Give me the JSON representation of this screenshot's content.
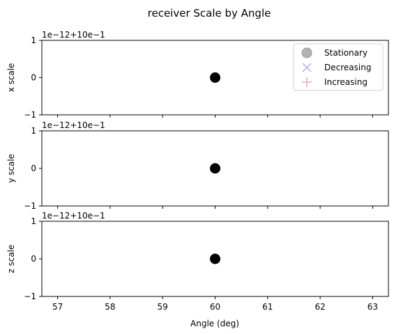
{
  "chart_data": {
    "type": "scatter",
    "title": "receiver Scale by Angle",
    "xlabel": "Angle (deg)",
    "xlim": [
      56.7,
      63.3
    ],
    "xticks": [
      "57",
      "58",
      "59",
      "60",
      "61",
      "62",
      "63"
    ],
    "ylim": [
      -1,
      1
    ],
    "yticks": [
      "-1",
      "0",
      "1"
    ],
    "y_offset_text": "1e−12+10e−1",
    "legend": {
      "position": "top-right",
      "entries": [
        {
          "label": "Stationary",
          "marker": "circle",
          "color": "#808080"
        },
        {
          "label": "Decreasing",
          "marker": "x",
          "color": "#aab0f0"
        },
        {
          "label": "Increasing",
          "marker": "plus",
          "color": "#f4a6a6"
        }
      ]
    },
    "panels": [
      {
        "ylabel": "x scale",
        "points": [
          {
            "x": 60,
            "y": 0,
            "series": "Stationary"
          }
        ]
      },
      {
        "ylabel": "y scale",
        "points": [
          {
            "x": 60,
            "y": 0,
            "series": "Stationary"
          }
        ]
      },
      {
        "ylabel": "z scale",
        "points": [
          {
            "x": 60,
            "y": 0,
            "series": "Stationary"
          }
        ]
      }
    ]
  }
}
